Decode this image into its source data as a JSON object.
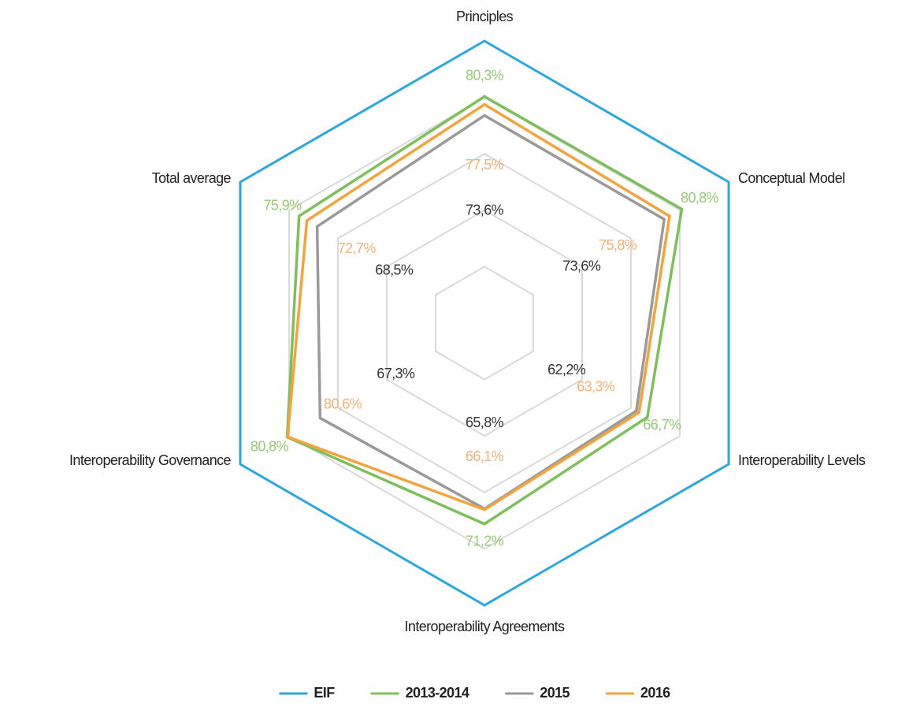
{
  "chart_data": {
    "type": "radar",
    "categories": [
      "Principles",
      "Conceptual Model",
      "Interoperability Levels",
      "Interoperability Agreements",
      "Interoperability Governance",
      "Total average"
    ],
    "rlim": [
      0,
      100
    ],
    "rticks": [
      20,
      40,
      60,
      80
    ],
    "grid": true,
    "legend": "bottom",
    "series": [
      {
        "name": "EIF",
        "color": "#29a8df",
        "values": [
          100,
          100,
          100,
          100,
          100,
          100
        ]
      },
      {
        "name": "2013-2014",
        "color": "#7dc05a",
        "label_color": "#95cc74",
        "values": [
          80.3,
          80.8,
          66.7,
          71.2,
          80.8,
          75.9
        ],
        "value_labels": [
          "80,3%",
          "80,8%",
          "66,7%",
          "71,2%",
          "80,8%",
          "75,9%"
        ]
      },
      {
        "name": "2015",
        "color": "#9a9a9a",
        "label_color": "#333333",
        "values": [
          73.6,
          73.6,
          62.2,
          65.8,
          67.3,
          68.5
        ],
        "value_labels": [
          "73,6%",
          "73,6%",
          "62,2%",
          "65,8%",
          "67,3%",
          "68,5%"
        ]
      },
      {
        "name": "2016",
        "color": "#f6a33c",
        "label_color": "#f5b275",
        "values": [
          77.5,
          75.8,
          63.3,
          66.1,
          80.6,
          72.7
        ],
        "value_labels": [
          "77,5%",
          "75,8%",
          "63,3%",
          "66,1%",
          "80,6%",
          "72,7%"
        ]
      }
    ]
  }
}
